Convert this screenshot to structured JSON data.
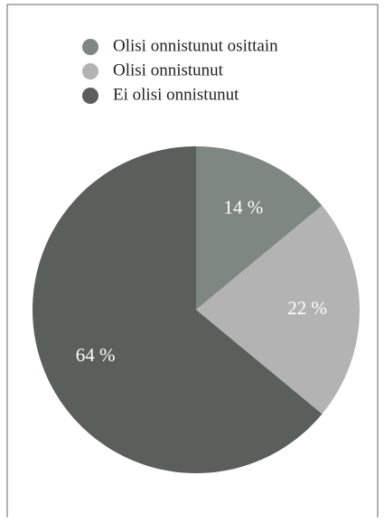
{
  "chart_data": {
    "type": "pie",
    "categories": [
      "Olisi onnistunut osittain",
      "Olisi onnistunut",
      "Ei olisi onnistunut"
    ],
    "values": [
      14,
      22,
      64
    ],
    "value_labels": [
      "14 %",
      "22 %",
      "64 %"
    ],
    "colors": [
      "#7f8782",
      "#b3b3b3",
      "#5b5f5c"
    ],
    "legend": "top"
  }
}
